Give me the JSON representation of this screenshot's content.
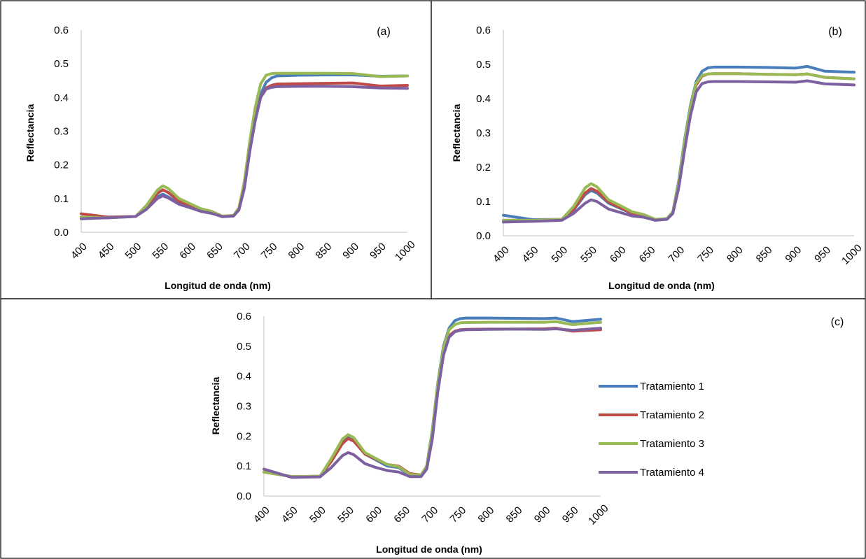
{
  "chart_data": [
    {
      "type": "line",
      "panel_label": "(a)",
      "xlabel": "Longitud de onda (nm)",
      "ylabel": "Reflectancia",
      "xlim": [
        400,
        1000
      ],
      "ylim": [
        0,
        0.6
      ],
      "x_ticks": [
        400,
        450,
        500,
        550,
        600,
        650,
        700,
        750,
        800,
        850,
        900,
        950,
        1000
      ],
      "y_ticks": [
        "0.0",
        "0.1",
        "0.2",
        "0.3",
        "0.4",
        "0.5",
        "0.6"
      ],
      "grid": false,
      "x": [
        400,
        450,
        500,
        520,
        540,
        550,
        560,
        580,
        600,
        620,
        640,
        660,
        680,
        690,
        700,
        710,
        720,
        730,
        740,
        750,
        760,
        800,
        850,
        900,
        950,
        1000
      ],
      "series": [
        {
          "name": "Tratamiento 1",
          "color": "#4a7ebb",
          "values": [
            0.045,
            0.043,
            0.047,
            0.07,
            0.105,
            0.113,
            0.105,
            0.085,
            0.075,
            0.063,
            0.058,
            0.047,
            0.05,
            0.07,
            0.14,
            0.25,
            0.34,
            0.41,
            0.445,
            0.458,
            0.464,
            0.466,
            0.467,
            0.467,
            0.463,
            0.464
          ]
        },
        {
          "name": "Tratamiento 2",
          "color": "#be4b48",
          "values": [
            0.055,
            0.045,
            0.047,
            0.075,
            0.115,
            0.126,
            0.118,
            0.092,
            0.078,
            0.065,
            0.058,
            0.047,
            0.05,
            0.068,
            0.135,
            0.245,
            0.335,
            0.4,
            0.428,
            0.436,
            0.44,
            0.441,
            0.442,
            0.443,
            0.434,
            0.436
          ]
        },
        {
          "name": "Tratamiento 3",
          "color": "#98b954",
          "values": [
            0.045,
            0.043,
            0.047,
            0.08,
            0.125,
            0.138,
            0.13,
            0.1,
            0.085,
            0.07,
            0.062,
            0.048,
            0.05,
            0.072,
            0.15,
            0.27,
            0.37,
            0.44,
            0.466,
            0.471,
            0.472,
            0.472,
            0.472,
            0.471,
            0.462,
            0.464
          ]
        },
        {
          "name": "Tratamiento 4",
          "color": "#7d60a0",
          "values": [
            0.04,
            0.043,
            0.047,
            0.068,
            0.1,
            0.108,
            0.102,
            0.083,
            0.073,
            0.062,
            0.056,
            0.046,
            0.048,
            0.066,
            0.13,
            0.24,
            0.33,
            0.4,
            0.425,
            0.43,
            0.432,
            0.433,
            0.433,
            0.432,
            0.428,
            0.427
          ]
        }
      ]
    },
    {
      "type": "line",
      "panel_label": "(b)",
      "xlabel": "Longitud de onda (nm)",
      "ylabel": "Reflectancia",
      "xlim": [
        400,
        1000
      ],
      "ylim": [
        0,
        0.6
      ],
      "x_ticks": [
        400,
        450,
        500,
        550,
        600,
        650,
        700,
        750,
        800,
        850,
        900,
        950,
        1000
      ],
      "y_ticks": [
        "0.0",
        "0.1",
        "0.2",
        "0.3",
        "0.4",
        "0.5",
        "0.6"
      ],
      "grid": false,
      "x": [
        400,
        450,
        500,
        520,
        540,
        550,
        560,
        580,
        600,
        620,
        640,
        660,
        680,
        690,
        700,
        710,
        720,
        730,
        740,
        750,
        760,
        800,
        850,
        900,
        920,
        950,
        1000
      ],
      "series": [
        {
          "name": "Tratamiento 1",
          "color": "#4a7ebb",
          "values": [
            0.06,
            0.047,
            0.048,
            0.075,
            0.12,
            0.132,
            0.125,
            0.095,
            0.08,
            0.065,
            0.058,
            0.047,
            0.05,
            0.07,
            0.16,
            0.28,
            0.38,
            0.45,
            0.48,
            0.49,
            0.492,
            0.492,
            0.491,
            0.489,
            0.494,
            0.48,
            0.477
          ]
        },
        {
          "name": "Tratamiento 2",
          "color": "#be4b48",
          "values": [
            0.045,
            0.045,
            0.048,
            0.077,
            0.125,
            0.138,
            0.13,
            0.098,
            0.082,
            0.066,
            0.058,
            0.047,
            0.05,
            0.068,
            0.15,
            0.27,
            0.37,
            0.44,
            0.466,
            0.472,
            0.473,
            0.473,
            0.471,
            0.47,
            0.472,
            0.462,
            0.458
          ]
        },
        {
          "name": "Tratamiento 3",
          "color": "#98b954",
          "values": [
            0.045,
            0.045,
            0.048,
            0.085,
            0.14,
            0.152,
            0.143,
            0.105,
            0.088,
            0.07,
            0.062,
            0.048,
            0.05,
            0.07,
            0.155,
            0.275,
            0.375,
            0.445,
            0.468,
            0.472,
            0.473,
            0.473,
            0.471,
            0.47,
            0.472,
            0.462,
            0.458
          ]
        },
        {
          "name": "Tratamiento 4",
          "color": "#7d60a0",
          "values": [
            0.04,
            0.042,
            0.045,
            0.065,
            0.095,
            0.105,
            0.1,
            0.078,
            0.068,
            0.058,
            0.054,
            0.045,
            0.048,
            0.065,
            0.14,
            0.25,
            0.35,
            0.42,
            0.444,
            0.449,
            0.45,
            0.45,
            0.449,
            0.448,
            0.452,
            0.443,
            0.44
          ]
        }
      ]
    },
    {
      "type": "line",
      "panel_label": "(c)",
      "xlabel": "Longitud de onda (nm)",
      "ylabel": "Reflectancia",
      "xlim": [
        400,
        1000
      ],
      "ylim": [
        0,
        0.6
      ],
      "x_ticks": [
        400,
        450,
        500,
        550,
        600,
        650,
        700,
        750,
        800,
        850,
        900,
        950,
        1000
      ],
      "y_ticks": [
        "0.0",
        "0.1",
        "0.2",
        "0.3",
        "0.4",
        "0.5",
        "0.6"
      ],
      "grid": false,
      "legend": "right",
      "x": [
        400,
        450,
        500,
        520,
        540,
        550,
        560,
        580,
        600,
        620,
        640,
        660,
        680,
        690,
        700,
        710,
        720,
        730,
        740,
        750,
        760,
        800,
        850,
        900,
        920,
        950,
        1000
      ],
      "series": [
        {
          "name": "Tratamiento 1",
          "color": "#4a7ebb",
          "values": [
            0.08,
            0.065,
            0.066,
            0.12,
            0.18,
            0.195,
            0.185,
            0.14,
            0.12,
            0.1,
            0.095,
            0.07,
            0.07,
            0.1,
            0.22,
            0.38,
            0.5,
            0.56,
            0.585,
            0.592,
            0.594,
            0.594,
            0.593,
            0.592,
            0.594,
            0.582,
            0.59
          ]
        },
        {
          "name": "Tratamiento 2",
          "color": "#be4b48",
          "values": [
            0.08,
            0.065,
            0.066,
            0.115,
            0.175,
            0.192,
            0.183,
            0.14,
            0.123,
            0.105,
            0.1,
            0.075,
            0.07,
            0.095,
            0.2,
            0.36,
            0.48,
            0.535,
            0.55,
            0.555,
            0.556,
            0.557,
            0.557,
            0.558,
            0.56,
            0.55,
            0.555
          ]
        },
        {
          "name": "Tratamiento 3",
          "color": "#98b954",
          "values": [
            0.08,
            0.065,
            0.066,
            0.125,
            0.19,
            0.205,
            0.195,
            0.145,
            0.125,
            0.105,
            0.098,
            0.072,
            0.07,
            0.1,
            0.215,
            0.375,
            0.495,
            0.555,
            0.572,
            0.578,
            0.579,
            0.58,
            0.58,
            0.58,
            0.582,
            0.572,
            0.58
          ]
        },
        {
          "name": "Tratamiento 4",
          "color": "#7d60a0",
          "values": [
            0.09,
            0.062,
            0.064,
            0.095,
            0.135,
            0.145,
            0.138,
            0.108,
            0.095,
            0.085,
            0.08,
            0.065,
            0.065,
            0.09,
            0.19,
            0.35,
            0.47,
            0.53,
            0.548,
            0.553,
            0.555,
            0.556,
            0.557,
            0.556,
            0.558,
            0.553,
            0.56
          ]
        }
      ]
    }
  ]
}
